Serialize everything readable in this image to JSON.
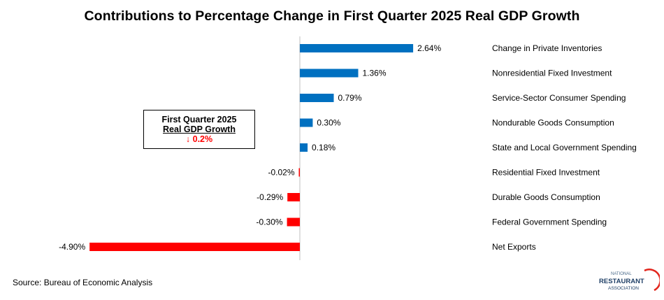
{
  "chart_data": {
    "type": "bar",
    "orientation": "horizontal",
    "title": "Contributions  to Percentage Change in First Quarter 2025 Real GDP Growth",
    "categories": [
      "Change in Private Inventories",
      "Nonresidential Fixed Investment",
      "Service-Sector Consumer Spending",
      "Nondurable Goods Consumption",
      "State and Local Government Spending",
      "Residential Fixed Investment",
      "Durable Goods Consumption",
      "Federal Government Spending",
      "Net Exports"
    ],
    "values": [
      2.64,
      1.36,
      0.79,
      0.3,
      0.18,
      -0.02,
      -0.29,
      -0.3,
      -4.9
    ],
    "value_labels": [
      "2.64%",
      "1.36%",
      "0.79%",
      "0.30%",
      "0.18%",
      "-0.02%",
      "-0.29%",
      "-0.30%",
      "-4.90%"
    ],
    "xlim": [
      -4.9,
      2.64
    ],
    "grid": false,
    "legend": "none",
    "colors": {
      "positive": "#0070C0",
      "negative": "#FF0000"
    }
  },
  "callout": {
    "line1": "First  Quarter 2025",
    "line2": "Real GDP Growth",
    "line3": "↓ 0.2%"
  },
  "source": "Source: Bureau of Economic Analysis",
  "logo": {
    "line1": "NATIONAL",
    "line2": "RESTAURANT",
    "line3": "ASSOCIATION"
  }
}
